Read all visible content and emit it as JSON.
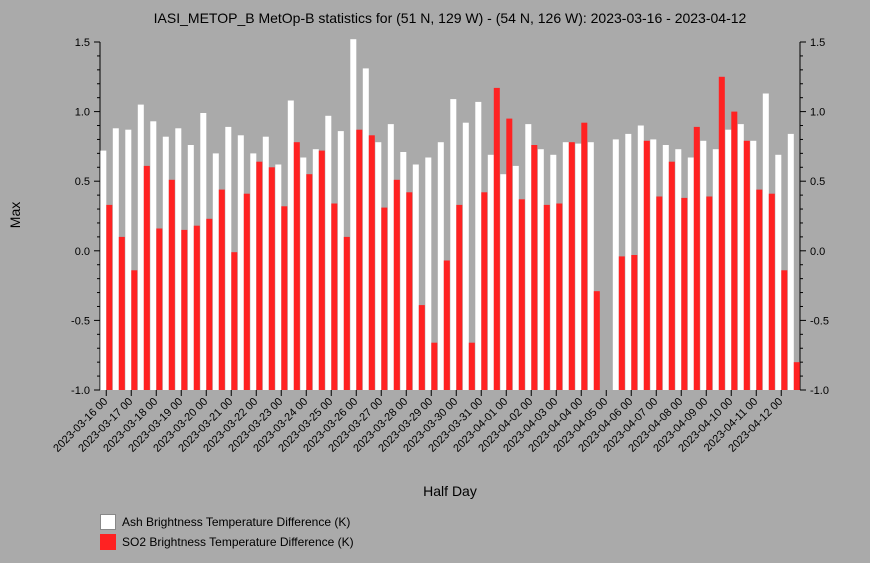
{
  "chart_data": {
    "type": "bar",
    "title": "IASI_METOP_B MetOp-B statistics for (51 N, 129 W) - (54 N, 126 W): 2023-03-16 - 2023-04-12",
    "xlabel": "Half Day",
    "ylabel": "Max",
    "ylim": [
      -1.0,
      1.5
    ],
    "yticks": [
      "-1.0",
      "-0.5",
      "0.0",
      "0.5",
      "1.0",
      "1.5"
    ],
    "xticks": [
      "2023-03-16 00",
      "2023-03-17 00",
      "2023-03-18 00",
      "2023-03-19 00",
      "2023-03-20 00",
      "2023-03-21 00",
      "2023-03-22 00",
      "2023-03-23 00",
      "2023-03-24 00",
      "2023-03-25 00",
      "2023-03-26 00",
      "2023-03-27 00",
      "2023-03-28 00",
      "2023-03-29 00",
      "2023-03-30 00",
      "2023-03-31 00",
      "2023-04-01 00",
      "2023-04-02 00",
      "2023-04-03 00",
      "2023-04-04 00",
      "2023-04-05 00",
      "2023-04-06 00",
      "2023-04-07 00",
      "2023-04-08 00",
      "2023-04-09 00",
      "2023-04-10 00",
      "2023-04-11 00",
      "2023-04-12 00"
    ],
    "series": [
      {
        "name": "Ash Brightness Temperature Difference (K)",
        "color": "#ffffff",
        "values": [
          0.72,
          0.88,
          0.87,
          1.05,
          0.93,
          0.82,
          0.88,
          0.76,
          0.99,
          0.7,
          0.89,
          0.83,
          0.7,
          0.82,
          0.62,
          1.08,
          0.67,
          0.73,
          0.97,
          0.86,
          1.52,
          1.31,
          0.78,
          0.91,
          0.71,
          0.62,
          0.67,
          0.78,
          1.09,
          0.92,
          1.07,
          0.69,
          0.55,
          0.61,
          0.91,
          0.73,
          0.69,
          0.78,
          0.77,
          0.78,
          null,
          0.8,
          0.84,
          0.9,
          0.8,
          0.76,
          0.73,
          0.67,
          0.79,
          0.73,
          0.87,
          0.91,
          0.79,
          1.13,
          0.69,
          0.84
        ]
      },
      {
        "name": "SO2 Brightness Temperature Difference (K)",
        "color": "#ff2222",
        "values": [
          0.33,
          0.1,
          -0.14,
          0.61,
          0.16,
          0.51,
          0.15,
          0.18,
          0.23,
          0.44,
          -0.01,
          0.41,
          0.64,
          0.6,
          0.32,
          0.78,
          0.55,
          0.72,
          0.34,
          0.1,
          0.87,
          0.83,
          0.31,
          0.51,
          0.42,
          -0.39,
          -0.66,
          -0.07,
          0.33,
          -0.66,
          0.42,
          1.17,
          0.95,
          0.37,
          0.76,
          0.33,
          0.34,
          0.78,
          0.92,
          -0.29,
          null,
          -0.04,
          -0.03,
          0.79,
          0.39,
          0.64,
          0.38,
          0.89,
          0.39,
          1.25,
          1.0,
          0.79,
          0.44,
          0.41,
          -0.14,
          -0.8
        ]
      }
    ],
    "legend_position": "bottom-left"
  }
}
